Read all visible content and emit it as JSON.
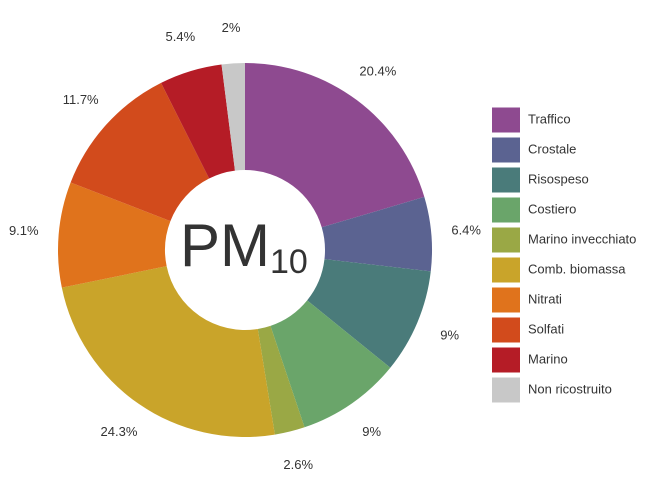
{
  "chart_data": {
    "type": "donut",
    "center_label": "PM",
    "center_subscript": "10",
    "categories": [
      "Traffico",
      "Crostale",
      "Risospeso",
      "Costiero",
      "Marino invecchiato",
      "Comb. biomassa",
      "Nitrati",
      "Solfati",
      "Marino",
      "Non ricostruito"
    ],
    "values": [
      20.4,
      6.4,
      9,
      9,
      2.6,
      24.3,
      9.1,
      11.7,
      5.4,
      2
    ],
    "value_labels": [
      "20.4%",
      "6.4%",
      "9%",
      "9%",
      "2.6%",
      "24.3%",
      "9.1%",
      "11.7%",
      "5.4%",
      "2%"
    ],
    "colors": [
      "#8e4a90",
      "#5b6391",
      "#4a7b7a",
      "#6aa56a",
      "#9aa845",
      "#c9a42a",
      "#e0731c",
      "#d24b1c",
      "#b51c26",
      "#c8c8c8"
    ],
    "legend": "right"
  }
}
